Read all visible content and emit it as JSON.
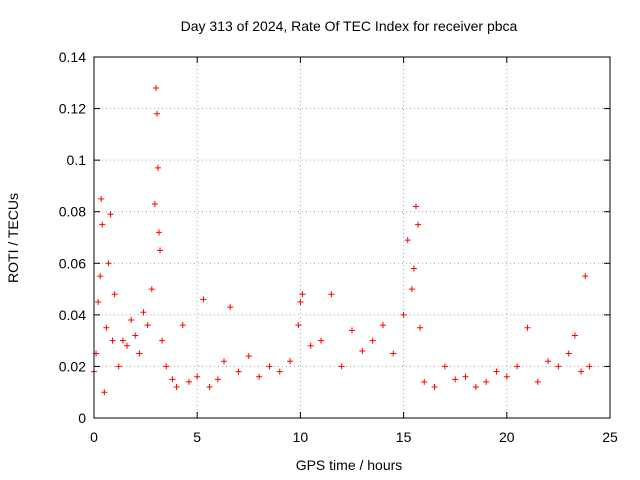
{
  "chart_data": {
    "type": "scatter",
    "title": "Day 313 of 2024, Rate Of TEC Index for receiver pbca",
    "xlabel": "GPS time / hours",
    "ylabel": "ROTI / TECUs",
    "xlim": [
      0,
      25
    ],
    "ylim": [
      0,
      0.14
    ],
    "x_ticks": [
      0,
      5,
      10,
      15,
      20,
      25
    ],
    "x_tick_labels": [
      "0",
      "5",
      "10",
      "15",
      "20",
      "25"
    ],
    "y_ticks": [
      0,
      0.02,
      0.04,
      0.06,
      0.08,
      0.1,
      0.12,
      0.14
    ],
    "y_tick_labels": [
      "0",
      "0.02",
      "0.04",
      "0.06",
      "0.08",
      "0.1",
      "0.12",
      "0.14"
    ],
    "grid": true,
    "marker": "+",
    "color": "#ff0000",
    "series": [
      {
        "name": "ROTI",
        "x": [
          0.0,
          0.1,
          0.2,
          0.3,
          0.35,
          0.4,
          0.5,
          0.6,
          0.7,
          0.8,
          0.9,
          1.0,
          1.2,
          1.4,
          1.6,
          1.8,
          2.0,
          2.2,
          2.4,
          2.6,
          2.8,
          2.95,
          3.0,
          3.05,
          3.1,
          3.15,
          3.2,
          3.3,
          3.5,
          3.8,
          4.0,
          4.3,
          4.6,
          5.0,
          5.3,
          5.6,
          6.0,
          6.3,
          6.6,
          7.0,
          7.5,
          8.0,
          8.5,
          9.0,
          9.5,
          9.9,
          10.0,
          10.1,
          10.5,
          11.0,
          11.5,
          12.0,
          12.5,
          13.0,
          13.5,
          14.0,
          14.5,
          15.0,
          15.2,
          15.4,
          15.5,
          15.6,
          15.7,
          15.8,
          16.0,
          16.5,
          17.0,
          17.5,
          18.0,
          18.5,
          19.0,
          19.5,
          20.0,
          20.5,
          21.0,
          21.5,
          22.0,
          22.5,
          23.0,
          23.3,
          23.6,
          23.8,
          24.0
        ],
        "y": [
          0.018,
          0.025,
          0.045,
          0.055,
          0.085,
          0.075,
          0.01,
          0.035,
          0.06,
          0.079,
          0.03,
          0.048,
          0.02,
          0.03,
          0.028,
          0.038,
          0.032,
          0.025,
          0.041,
          0.036,
          0.05,
          0.083,
          0.128,
          0.118,
          0.097,
          0.072,
          0.065,
          0.03,
          0.02,
          0.015,
          0.012,
          0.036,
          0.014,
          0.016,
          0.046,
          0.012,
          0.015,
          0.022,
          0.043,
          0.018,
          0.024,
          0.016,
          0.02,
          0.018,
          0.022,
          0.036,
          0.045,
          0.048,
          0.028,
          0.03,
          0.048,
          0.02,
          0.034,
          0.026,
          0.03,
          0.036,
          0.025,
          0.04,
          0.069,
          0.05,
          0.058,
          0.082,
          0.075,
          0.035,
          0.014,
          0.012,
          0.02,
          0.015,
          0.016,
          0.012,
          0.014,
          0.018,
          0.016,
          0.02,
          0.035,
          0.014,
          0.022,
          0.02,
          0.025,
          0.032,
          0.018,
          0.055,
          0.02
        ]
      }
    ]
  }
}
